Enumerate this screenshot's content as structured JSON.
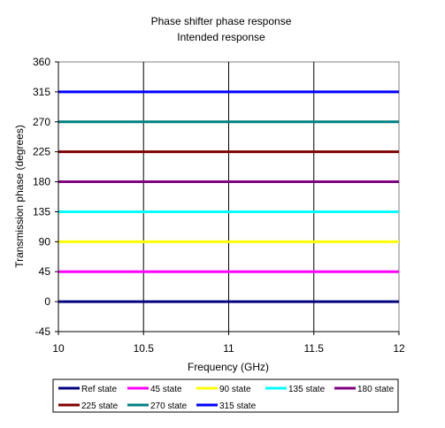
{
  "chart_data": {
    "type": "line",
    "title": "Phase shifter phase response",
    "subtitle": "Intended response",
    "xlabel": "Frequency (GHz)",
    "ylabel": "Transmission phase (degrees)",
    "xlim": [
      10,
      12
    ],
    "ylim": [
      -45,
      360
    ],
    "x_ticks": [
      10,
      10.5,
      11,
      11.5,
      12
    ],
    "x_tick_labels": [
      "10",
      "10.5",
      "11",
      "11.5",
      "12"
    ],
    "y_ticks": [
      -45,
      0,
      45,
      90,
      135,
      180,
      225,
      270,
      315,
      360
    ],
    "y_tick_labels": [
      "-45",
      "0",
      "45",
      "90",
      "135",
      "180",
      "225",
      "270",
      "315",
      "360"
    ],
    "grid": "vertical",
    "legend_position": "bottom",
    "x": [
      10,
      12
    ],
    "series": [
      {
        "name": "Ref state",
        "color": "#000080",
        "values": [
          0,
          0
        ]
      },
      {
        "name": "45 state",
        "color": "#FF00FF",
        "values": [
          45,
          45
        ]
      },
      {
        "name": "90 state",
        "color": "#FFFF00",
        "values": [
          90,
          90
        ]
      },
      {
        "name": "135 state",
        "color": "#00FFFF",
        "values": [
          135,
          135
        ]
      },
      {
        "name": "180 state",
        "color": "#800080",
        "values": [
          180,
          180
        ]
      },
      {
        "name": "225 state",
        "color": "#800000",
        "values": [
          225,
          225
        ]
      },
      {
        "name": "270 state",
        "color": "#008080",
        "values": [
          270,
          270
        ]
      },
      {
        "name": "315 state",
        "color": "#0000FF",
        "values": [
          315,
          315
        ]
      }
    ]
  }
}
